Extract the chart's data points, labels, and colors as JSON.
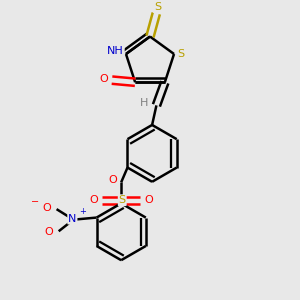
{
  "bg_color": "#e8e8e8",
  "bond_color": "#000000",
  "bond_width": 1.8,
  "S_color": "#b8a000",
  "N_color": "#0000cd",
  "O_color": "#ff0000",
  "H_color": "#808080",
  "fig_width": 3.0,
  "fig_height": 3.0,
  "xlim": [
    0.3,
    2.7
  ],
  "ylim": [
    0.2,
    3.0
  ]
}
